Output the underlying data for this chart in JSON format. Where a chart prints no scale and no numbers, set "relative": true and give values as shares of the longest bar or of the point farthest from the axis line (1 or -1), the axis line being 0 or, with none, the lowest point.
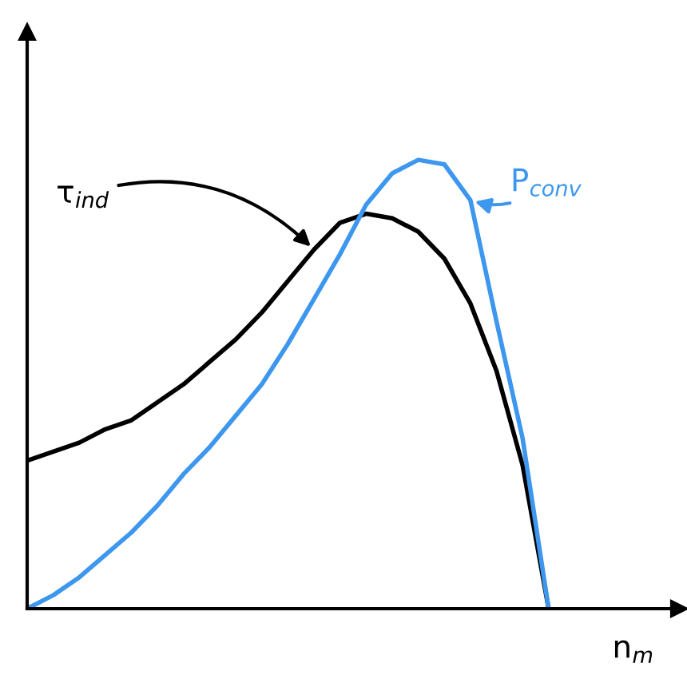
{
  "chart_data": {
    "type": "line",
    "relative": true,
    "xlabel": "n$_{m}$",
    "marker": "none",
    "line_style": "solid",
    "categories": [
      null,
      null,
      null,
      null,
      null,
      null,
      null,
      null,
      null,
      null,
      null,
      null,
      null,
      null,
      null,
      null,
      null,
      null,
      null,
      null,
      null,
      null,
      null,
      null,
      null,
      null
    ],
    "series": [
      {
        "name": "τ$_{ind}$",
        "color": "#000000",
        "values": [
          0.33,
          0.35,
          0.37,
          0.4,
          0.42,
          0.46,
          0.5,
          0.55,
          0.6,
          0.66,
          0.73,
          0.8,
          0.86,
          0.88,
          0.87,
          0.84,
          0.78,
          0.68,
          0.53,
          0.32,
          0,
          null,
          null,
          null,
          null,
          null
        ]
      },
      {
        "name": "P$_{conv}$",
        "color": "#3d97ee",
        "values": [
          0,
          0.03,
          0.07,
          0.12,
          0.17,
          0.23,
          0.3,
          0.36,
          0.43,
          0.5,
          0.59,
          0.69,
          0.79,
          0.9,
          0.97,
          1.0,
          0.99,
          0.91,
          0.64,
          0.38,
          0,
          null,
          null,
          null,
          null,
          null
        ]
      }
    ]
  }
}
